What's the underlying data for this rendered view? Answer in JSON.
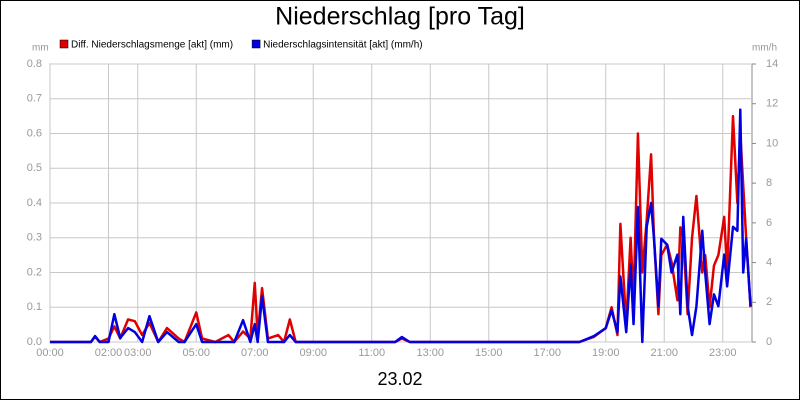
{
  "chart_data": {
    "type": "line",
    "title": "Niederschlag [pro Tag]",
    "xlabel": "23.02",
    "ylabel": "mm",
    "y2label": "mm/h",
    "x": [
      0,
      1.4,
      1.54,
      1.7,
      2.0,
      2.2,
      2.4,
      2.67,
      2.9,
      3.15,
      3.4,
      3.7,
      4.0,
      4.4,
      4.6,
      5.0,
      5.2,
      5.65,
      6.1,
      6.3,
      6.6,
      6.85,
      7.0,
      7.1,
      7.25,
      7.45,
      7.8,
      8.0,
      8.2,
      8.4,
      11.8,
      12.03,
      12.3,
      18.1,
      18.6,
      19.0,
      19.2,
      19.4,
      19.5,
      19.7,
      19.85,
      19.95,
      20.1,
      20.25,
      20.4,
      20.55,
      20.65,
      20.8,
      20.9,
      21.1,
      21.25,
      21.45,
      21.55,
      21.65,
      21.8,
      21.95,
      22.1,
      22.3,
      22.4,
      22.55,
      22.7,
      22.85,
      23.05,
      23.15,
      23.35,
      23.5,
      23.6,
      23.7,
      23.8,
      23.95
    ],
    "series": [
      {
        "name": "Diff. Niederschlagsmenge [akt] (mm)",
        "color": "#e00000",
        "values": [
          0,
          0,
          0.015,
          0,
          0.01,
          0.045,
          0.01,
          0.065,
          0.06,
          0.02,
          0.055,
          0,
          0.04,
          0.01,
          0,
          0.085,
          0.01,
          0,
          0.02,
          0,
          0.03,
          0.01,
          0.17,
          0.02,
          0.155,
          0.01,
          0.02,
          0,
          0.065,
          0,
          0,
          0.01,
          0,
          0,
          0.015,
          0.04,
          0.1,
          0.02,
          0.34,
          0.05,
          0.3,
          0.12,
          0.6,
          0.2,
          0.35,
          0.54,
          0.3,
          0.08,
          0.25,
          0.28,
          0.23,
          0.12,
          0.33,
          0.3,
          0.08,
          0.3,
          0.42,
          0.2,
          0.25,
          0.1,
          0.22,
          0.25,
          0.36,
          0.2,
          0.65,
          0.4,
          0.6,
          0.45,
          0.3,
          0.1
        ]
      },
      {
        "name": "Niederschlagsintensität [akt] (mm/h)",
        "color": "#0000e0",
        "axis": "y2",
        "values": [
          0,
          0,
          0.3,
          0,
          0,
          1.4,
          0.2,
          0.7,
          0.5,
          0,
          1.3,
          0,
          0.5,
          0,
          0,
          0.9,
          0,
          0,
          0,
          0,
          1.1,
          0,
          0.9,
          0,
          2.3,
          0,
          0,
          0,
          0.35,
          0,
          0,
          0.25,
          0,
          0,
          0.3,
          0.7,
          1.6,
          0.5,
          3.3,
          0.5,
          3.9,
          0.9,
          6.8,
          0,
          5.8,
          7,
          5.2,
          1.8,
          5.2,
          4.9,
          3.5,
          4.4,
          1.4,
          6.3,
          1.8,
          0.35,
          1.8,
          5.6,
          3.5,
          0.9,
          2.4,
          1.8,
          4.4,
          2.8,
          5.8,
          5.6,
          11.7,
          3.5,
          5.2,
          1.8
        ]
      }
    ],
    "xlim": [
      0,
      24
    ],
    "xticks": [
      {
        "value": 0,
        "label": "00:00"
      },
      {
        "value": 2,
        "label": "02:00"
      },
      {
        "value": 3,
        "label": "03:00"
      },
      {
        "value": 5,
        "label": "05:00"
      },
      {
        "value": 7,
        "label": "07:00"
      },
      {
        "value": 9,
        "label": "09:00"
      },
      {
        "value": 11,
        "label": "11:00"
      },
      {
        "value": 13,
        "label": "13:00"
      },
      {
        "value": 15,
        "label": "15:00"
      },
      {
        "value": 17,
        "label": "17:00"
      },
      {
        "value": 19,
        "label": "19:00"
      },
      {
        "value": 21,
        "label": "21:00"
      },
      {
        "value": 23,
        "label": "23:00"
      }
    ],
    "ylim": [
      0,
      0.8
    ],
    "yticks": [
      {
        "value": 0,
        "label": "0.0"
      },
      0.1,
      0.2,
      0.3,
      0.4,
      0.5,
      0.6,
      0.7,
      0.8
    ],
    "y2lim": [
      0,
      14
    ],
    "y2ticks": [
      0,
      2,
      4,
      6,
      8,
      10,
      12,
      14
    ],
    "grid": true
  }
}
